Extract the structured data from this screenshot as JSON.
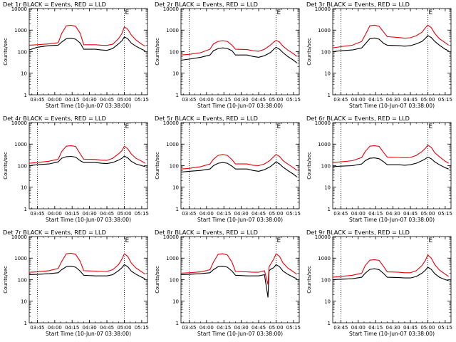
{
  "colors": {
    "events": "#000000",
    "lld": "#e8000b",
    "axes": "#000000",
    "marker": "#000000"
  },
  "chart_data": [
    {
      "type": "line",
      "title": "Det 1r BLACK = Events, RED = LLD",
      "xlabel": "Start Time (10-Jun-07 03:38:00)",
      "ylabel": "Counts/sec",
      "yscale": "log",
      "ylim": [
        1,
        10000
      ],
      "xlim": [
        "03:38",
        "05:20"
      ],
      "x_ticks": [
        "03:45",
        "04:00",
        "04:15",
        "04:30",
        "04:45",
        "05:00",
        "05:15"
      ],
      "y_ticks": [
        "1",
        "10",
        "100",
        "1000",
        "10000"
      ],
      "markers": [
        "03:45",
        "05:00"
      ],
      "markers_label": "E",
      "x": [
        "03:38",
        "03:45",
        "03:55",
        "04:03",
        "04:06",
        "04:10",
        "04:14",
        "04:18",
        "04:22",
        "04:25",
        "04:35",
        "04:40",
        "04:45",
        "04:50",
        "04:55",
        "04:58",
        "05:00",
        "05:03",
        "05:06",
        "05:10",
        "05:15",
        "05:18"
      ],
      "series": [
        {
          "name": "Events",
          "values": [
            120,
            160,
            190,
            200,
            280,
            400,
            420,
            380,
            250,
            130,
            130,
            120,
            115,
            140,
            230,
            320,
            480,
            400,
            250,
            180,
            130,
            110
          ]
        },
        {
          "name": "LLD",
          "values": [
            200,
            210,
            230,
            260,
            700,
            1600,
            1700,
            1500,
            700,
            210,
            210,
            200,
            195,
            220,
            400,
            700,
            1400,
            1100,
            600,
            350,
            220,
            180
          ]
        }
      ]
    },
    {
      "type": "line",
      "title": "Det 2r BLACK = Events, RED = LLD",
      "xlabel": "Start Time (10-Jun-07 03:38:00)",
      "ylabel": "Counts/sec",
      "yscale": "log",
      "ylim": [
        1,
        10000
      ],
      "xlim": [
        "03:38",
        "05:20"
      ],
      "x_ticks": [
        "03:45",
        "04:00",
        "04:15",
        "04:30",
        "04:45",
        "05:00",
        "05:15"
      ],
      "y_ticks": [
        "1",
        "10",
        "100",
        "1000",
        "10000"
      ],
      "markers": [
        "03:45",
        "05:00"
      ],
      "markers_label": "E",
      "x": [
        "03:38",
        "03:45",
        "03:55",
        "04:03",
        "04:06",
        "04:10",
        "04:14",
        "04:18",
        "04:22",
        "04:25",
        "04:35",
        "04:40",
        "04:45",
        "04:50",
        "04:55",
        "04:58",
        "05:00",
        "05:03",
        "05:06",
        "05:10",
        "05:15",
        "05:18"
      ],
      "series": [
        {
          "name": "Events",
          "values": [
            40,
            45,
            55,
            70,
            110,
            140,
            150,
            140,
            110,
            70,
            70,
            60,
            55,
            65,
            90,
            130,
            160,
            130,
            90,
            60,
            40,
            30
          ]
        },
        {
          "name": "LLD",
          "values": [
            70,
            75,
            90,
            130,
            230,
            300,
            320,
            300,
            200,
            130,
            125,
            110,
            105,
            130,
            200,
            280,
            330,
            280,
            180,
            120,
            80,
            60
          ]
        }
      ]
    },
    {
      "type": "line",
      "title": "Det 3r BLACK = Events, RED = LLD",
      "xlabel": "Start Time (10-Jun-07 03:38:00)",
      "ylabel": "Counts/sec",
      "yscale": "log",
      "ylim": [
        1,
        10000
      ],
      "xlim": [
        "03:38",
        "05:20"
      ],
      "x_ticks": [
        "03:45",
        "04:00",
        "04:15",
        "04:30",
        "04:45",
        "05:00",
        "05:15"
      ],
      "y_ticks": [
        "1",
        "10",
        "100",
        "1000",
        "10000"
      ],
      "markers": [
        "03:45",
        "05:00"
      ],
      "markers_label": "E",
      "x": [
        "03:38",
        "03:45",
        "03:55",
        "04:03",
        "04:06",
        "04:10",
        "04:14",
        "04:18",
        "04:22",
        "04:25",
        "04:35",
        "04:40",
        "04:45",
        "04:50",
        "04:55",
        "04:58",
        "05:00",
        "05:03",
        "05:06",
        "05:10",
        "05:15",
        "05:18"
      ],
      "series": [
        {
          "name": "Events",
          "values": [
            100,
            110,
            120,
            150,
            230,
            400,
            430,
            380,
            240,
            200,
            190,
            180,
            190,
            230,
            300,
            420,
            560,
            450,
            300,
            200,
            130,
            110
          ]
        },
        {
          "name": "LLD",
          "values": [
            150,
            170,
            200,
            300,
            600,
            1600,
            1700,
            1500,
            800,
            500,
            450,
            420,
            440,
            550,
            800,
            1300,
            1700,
            1300,
            700,
            400,
            260,
            200
          ]
        }
      ]
    },
    {
      "type": "line",
      "title": "Det 4r BLACK = Events, RED = LLD",
      "xlabel": "Start Time (10-Jun-07 03:38:00)",
      "ylabel": "Counts/sec",
      "yscale": "log",
      "ylim": [
        1,
        10000
      ],
      "xlim": [
        "03:38",
        "05:20"
      ],
      "x_ticks": [
        "03:45",
        "04:00",
        "04:15",
        "04:30",
        "04:45",
        "05:00",
        "05:15"
      ],
      "y_ticks": [
        "1",
        "10",
        "100",
        "1000",
        "10000"
      ],
      "markers": [
        "03:45",
        "05:00"
      ],
      "markers_label": "E",
      "x": [
        "03:38",
        "03:45",
        "03:55",
        "04:03",
        "04:06",
        "04:10",
        "04:14",
        "04:18",
        "04:22",
        "04:25",
        "04:35",
        "04:40",
        "04:45",
        "04:50",
        "04:55",
        "04:58",
        "05:00",
        "05:03",
        "05:06",
        "05:10",
        "05:15",
        "05:18"
      ],
      "series": [
        {
          "name": "Events",
          "values": [
            100,
            110,
            120,
            150,
            220,
            260,
            270,
            250,
            170,
            140,
            140,
            130,
            125,
            140,
            180,
            220,
            280,
            230,
            160,
            120,
            100,
            90
          ]
        },
        {
          "name": "LLD",
          "values": [
            130,
            140,
            160,
            200,
            450,
            800,
            850,
            780,
            350,
            200,
            195,
            180,
            175,
            220,
            350,
            500,
            800,
            600,
            350,
            220,
            160,
            130
          ]
        }
      ]
    },
    {
      "type": "line",
      "title": "Det 5r BLACK = Events, RED = LLD",
      "xlabel": "Start Time (10-Jun-07 03:38:00)",
      "ylabel": "Counts/sec",
      "yscale": "log",
      "ylim": [
        1,
        10000
      ],
      "xlim": [
        "03:38",
        "05:20"
      ],
      "x_ticks": [
        "03:45",
        "04:00",
        "04:15",
        "04:30",
        "04:45",
        "05:00",
        "05:15"
      ],
      "y_ticks": [
        "1",
        "10",
        "100",
        "1000",
        "10000"
      ],
      "markers": [
        "03:45",
        "05:00"
      ],
      "markers_label": "E",
      "x": [
        "03:38",
        "03:45",
        "03:55",
        "04:03",
        "04:06",
        "04:10",
        "04:14",
        "04:18",
        "04:22",
        "04:25",
        "04:35",
        "04:40",
        "04:45",
        "04:50",
        "04:55",
        "04:58",
        "05:00",
        "05:03",
        "05:06",
        "05:10",
        "05:15",
        "05:18"
      ],
      "series": [
        {
          "name": "Events",
          "values": [
            50,
            55,
            60,
            70,
            100,
            130,
            140,
            130,
            95,
            70,
            70,
            60,
            55,
            65,
            90,
            120,
            150,
            120,
            85,
            60,
            40,
            30
          ]
        },
        {
          "name": "LLD",
          "values": [
            70,
            75,
            90,
            120,
            200,
            300,
            330,
            300,
            190,
            120,
            120,
            105,
            100,
            120,
            180,
            260,
            330,
            270,
            170,
            120,
            80,
            60
          ]
        }
      ]
    },
    {
      "type": "line",
      "title": "Det 6r BLACK = Events, RED = LLD",
      "xlabel": "Start Time (10-Jun-07 03:38:00)",
      "ylabel": "Counts/sec",
      "yscale": "log",
      "ylim": [
        1,
        10000
      ],
      "xlim": [
        "03:38",
        "05:20"
      ],
      "x_ticks": [
        "03:45",
        "04:00",
        "04:15",
        "04:30",
        "04:45",
        "05:00",
        "05:15"
      ],
      "y_ticks": [
        "1",
        "10",
        "100",
        "1000",
        "10000"
      ],
      "markers": [
        "03:45",
        "05:00"
      ],
      "markers_label": "E",
      "x": [
        "03:38",
        "03:45",
        "03:55",
        "04:03",
        "04:06",
        "04:10",
        "04:14",
        "04:18",
        "04:22",
        "04:25",
        "04:35",
        "04:40",
        "04:45",
        "04:50",
        "04:55",
        "04:58",
        "05:00",
        "05:03",
        "05:06",
        "05:10",
        "05:15",
        "05:18"
      ],
      "series": [
        {
          "name": "Events",
          "values": [
            90,
            95,
            100,
            120,
            170,
            220,
            230,
            210,
            150,
            110,
            110,
            105,
            110,
            130,
            170,
            210,
            250,
            210,
            150,
            110,
            80,
            70
          ]
        },
        {
          "name": "LLD",
          "values": [
            140,
            150,
            170,
            240,
            450,
            800,
            850,
            780,
            400,
            250,
            240,
            230,
            240,
            300,
            450,
            650,
            900,
            700,
            400,
            260,
            160,
            130
          ]
        }
      ]
    },
    {
      "type": "line",
      "title": "Det 7r BLACK = Events, RED = LLD",
      "xlabel": "Start Time (10-Jun-07 03:38:00)",
      "ylabel": "Counts/sec",
      "yscale": "log",
      "ylim": [
        1,
        10000
      ],
      "xlim": [
        "03:38",
        "05:20"
      ],
      "x_ticks": [
        "03:45",
        "04:00",
        "04:15",
        "04:30",
        "04:45",
        "05:00",
        "05:15"
      ],
      "y_ticks": [
        "1",
        "10",
        "100",
        "1000",
        "10000"
      ],
      "markers": [
        "03:45",
        "05:00"
      ],
      "markers_label": "E",
      "x": [
        "03:38",
        "03:45",
        "03:55",
        "04:03",
        "04:06",
        "04:10",
        "04:14",
        "04:18",
        "04:22",
        "04:25",
        "04:35",
        "04:40",
        "04:45",
        "04:50",
        "04:55",
        "04:58",
        "05:00",
        "05:03",
        "05:06",
        "05:10",
        "05:15",
        "05:18"
      ],
      "series": [
        {
          "name": "Events",
          "values": [
            170,
            175,
            190,
            210,
            290,
            400,
            420,
            380,
            250,
            160,
            150,
            150,
            150,
            170,
            260,
            360,
            500,
            400,
            250,
            180,
            130,
            110
          ]
        },
        {
          "name": "LLD",
          "values": [
            220,
            230,
            260,
            330,
            700,
            1600,
            1700,
            1500,
            700,
            260,
            250,
            240,
            240,
            290,
            500,
            900,
            1600,
            1200,
            600,
            350,
            230,
            180
          ]
        }
      ]
    },
    {
      "type": "line",
      "title": "Det 8r BLACK = Events, RED = LLD",
      "xlabel": "Start Time (10-Jun-07 03:38:00)",
      "ylabel": "Counts/sec",
      "yscale": "log",
      "ylim": [
        1,
        10000
      ],
      "xlim": [
        "03:38",
        "05:20"
      ],
      "x_ticks": [
        "03:45",
        "04:00",
        "04:15",
        "04:30",
        "04:45",
        "05:00",
        "05:15"
      ],
      "y_ticks": [
        "1",
        "10",
        "100",
        "1000",
        "10000"
      ],
      "markers": [
        "03:45",
        "05:00"
      ],
      "markers_label": "E",
      "x": [
        "03:38",
        "03:45",
        "03:55",
        "04:03",
        "04:06",
        "04:10",
        "04:14",
        "04:18",
        "04:22",
        "04:25",
        "04:35",
        "04:40",
        "04:45",
        "04:50",
        "04:53",
        "04:54",
        "04:56",
        "04:58",
        "05:00",
        "05:03",
        "05:06",
        "05:10",
        "05:15",
        "05:18"
      ],
      "series": [
        {
          "name": "Events",
          "values": [
            170,
            175,
            190,
            210,
            290,
            400,
            420,
            380,
            250,
            160,
            150,
            150,
            150,
            170,
            15,
            260,
            320,
            360,
            500,
            400,
            250,
            180,
            130,
            110
          ]
        },
        {
          "name": "LLD",
          "values": [
            200,
            210,
            230,
            290,
            650,
            1500,
            1600,
            1400,
            650,
            240,
            230,
            220,
            220,
            260,
            60,
            400,
            600,
            900,
            1600,
            1200,
            600,
            350,
            230,
            180
          ]
        }
      ]
    },
    {
      "type": "line",
      "title": "Det 9r BLACK = Events, RED = LLD",
      "xlabel": "Start Time (10-Jun-07 03:38:00)",
      "ylabel": "Counts/sec",
      "yscale": "log",
      "ylim": [
        1,
        10000
      ],
      "xlim": [
        "03:38",
        "05:20"
      ],
      "x_ticks": [
        "03:45",
        "04:00",
        "04:15",
        "04:30",
        "04:45",
        "05:00",
        "05:15"
      ],
      "y_ticks": [
        "1",
        "10",
        "100",
        "1000",
        "10000"
      ],
      "markers": [
        "03:45",
        "05:00"
      ],
      "markers_label": "E",
      "x": [
        "03:38",
        "03:45",
        "03:55",
        "04:03",
        "04:06",
        "04:10",
        "04:14",
        "04:18",
        "04:22",
        "04:25",
        "04:35",
        "04:40",
        "04:45",
        "04:50",
        "04:55",
        "04:58",
        "05:00",
        "05:03",
        "05:06",
        "05:10",
        "05:15",
        "05:18"
      ],
      "series": [
        {
          "name": "Events",
          "values": [
            100,
            105,
            110,
            130,
            200,
            300,
            320,
            290,
            190,
            130,
            125,
            120,
            120,
            140,
            200,
            280,
            380,
            300,
            190,
            130,
            100,
            90
          ]
        },
        {
          "name": "LLD",
          "values": [
            130,
            140,
            160,
            200,
            450,
            800,
            850,
            780,
            400,
            230,
            220,
            210,
            210,
            260,
            450,
            800,
            1400,
            1000,
            500,
            280,
            180,
            140
          ]
        }
      ]
    }
  ]
}
